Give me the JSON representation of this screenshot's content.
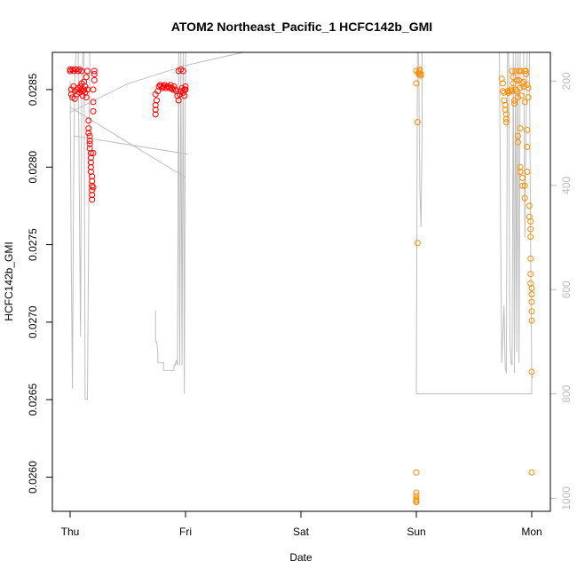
{
  "chart_data": {
    "type": "scatter",
    "title": "ATOM2 Northeast_Pacific_1 HCFC142b_GMI",
    "xlabel": "Date",
    "ylabel": "HCFC142b_GMI",
    "x_ticks": [
      "Thu",
      "Fri",
      "Sat",
      "Sun",
      "Mon"
    ],
    "xlim_days": [
      -0.1,
      4.15
    ],
    "ylim": [
      0.02578,
      0.02874
    ],
    "y_ticks": [
      "0.0260",
      "0.0265",
      "0.0270",
      "0.0275",
      "0.0280",
      "0.0285"
    ],
    "y2_ticks": [
      "200",
      "400",
      "600",
      "800",
      "1000"
    ],
    "y2lim": [
      1025,
      145
    ],
    "colors": {
      "series1": "#ff0000",
      "series2": "#ff8c00",
      "altitude": "#bebebe"
    },
    "series": [
      {
        "color": "red",
        "points": [
          [
            0.0,
            0.02863
          ],
          [
            0.0,
            0.02862
          ],
          [
            0.01,
            0.0285
          ],
          [
            0.01,
            0.02847
          ],
          [
            0.02,
            0.02845
          ],
          [
            0.02,
            0.02863
          ],
          [
            0.03,
            0.02862
          ],
          [
            0.03,
            0.02852
          ],
          [
            0.04,
            0.02849
          ],
          [
            0.04,
            0.02844
          ],
          [
            0.05,
            0.02863
          ],
          [
            0.05,
            0.02863
          ],
          [
            0.06,
            0.0285
          ],
          [
            0.06,
            0.02847
          ],
          [
            0.07,
            0.02862
          ],
          [
            0.07,
            0.02851
          ],
          [
            0.08,
            0.02848
          ],
          [
            0.08,
            0.02863
          ],
          [
            0.09,
            0.02852
          ],
          [
            0.09,
            0.0285
          ],
          [
            0.1,
            0.02862
          ],
          [
            0.1,
            0.02854
          ],
          [
            0.11,
            0.02849
          ],
          [
            0.11,
            0.02846
          ],
          [
            0.12,
            0.02855
          ],
          [
            0.12,
            0.0285
          ],
          [
            0.13,
            0.02852
          ],
          [
            0.13,
            0.02848
          ],
          [
            0.14,
            0.02858
          ],
          [
            0.14,
            0.02845
          ],
          [
            0.15,
            0.02862
          ],
          [
            0.15,
            0.0285
          ],
          [
            0.16,
            0.0283
          ],
          [
            0.16,
            0.02825
          ],
          [
            0.16,
            0.02822
          ],
          [
            0.17,
            0.0282
          ],
          [
            0.17,
            0.02817
          ],
          [
            0.17,
            0.02815
          ],
          [
            0.17,
            0.02812
          ],
          [
            0.18,
            0.02809
          ],
          [
            0.18,
            0.02806
          ],
          [
            0.18,
            0.02803
          ],
          [
            0.18,
            0.028
          ],
          [
            0.18,
            0.02797
          ],
          [
            0.19,
            0.02794
          ],
          [
            0.19,
            0.02791
          ],
          [
            0.19,
            0.02788
          ],
          [
            0.19,
            0.02785
          ],
          [
            0.19,
            0.02782
          ],
          [
            0.19,
            0.02779
          ],
          [
            0.2,
            0.02787
          ],
          [
            0.2,
            0.02809
          ],
          [
            0.2,
            0.02836
          ],
          [
            0.2,
            0.02842
          ],
          [
            0.2,
            0.0285
          ],
          [
            0.21,
            0.02856
          ],
          [
            0.21,
            0.0286
          ],
          [
            0.21,
            0.02862
          ],
          [
            0.74,
            0.02847
          ],
          [
            0.74,
            0.0284
          ],
          [
            0.74,
            0.02837
          ],
          [
            0.74,
            0.02834
          ],
          [
            0.75,
            0.02843
          ],
          [
            0.76,
            0.02849
          ],
          [
            0.77,
            0.02852
          ],
          [
            0.78,
            0.02853
          ],
          [
            0.79,
            0.02852
          ],
          [
            0.8,
            0.02851
          ],
          [
            0.81,
            0.02852
          ],
          [
            0.82,
            0.02853
          ],
          [
            0.83,
            0.02851
          ],
          [
            0.84,
            0.02852
          ],
          [
            0.85,
            0.02852
          ],
          [
            0.86,
            0.02851
          ],
          [
            0.87,
            0.02853
          ],
          [
            0.88,
            0.02851
          ],
          [
            0.89,
            0.0285
          ],
          [
            0.9,
            0.02852
          ],
          [
            0.91,
            0.0285
          ],
          [
            0.92,
            0.02849
          ],
          [
            0.93,
            0.02846
          ],
          [
            0.94,
            0.02843
          ],
          [
            0.94,
            0.02862
          ],
          [
            0.95,
            0.02847
          ],
          [
            0.96,
            0.02863
          ],
          [
            0.96,
            0.02849
          ],
          [
            0.97,
            0.02851
          ],
          [
            0.98,
            0.02862
          ],
          [
            0.98,
            0.02848
          ],
          [
            0.99,
            0.0285
          ],
          [
            0.99,
            0.02846
          ],
          [
            1.0,
            0.0285
          ],
          [
            1.0,
            0.02852
          ]
        ]
      },
      {
        "color": "darkorange",
        "points": [
          [
            3.0,
            0.02862
          ],
          [
            3.0,
            0.02854
          ],
          [
            3.01,
            0.02829
          ],
          [
            3.01,
            0.02751
          ],
          [
            3.02,
            0.0286
          ],
          [
            3.02,
            0.02861
          ],
          [
            3.03,
            0.02863
          ],
          [
            3.03,
            0.02862
          ],
          [
            3.04,
            0.0286
          ],
          [
            3.04,
            0.02859
          ],
          [
            3.0,
            0.02603
          ],
          [
            3.0,
            0.0259
          ],
          [
            3.0,
            0.02588
          ],
          [
            3.0,
            0.02586
          ],
          [
            3.0,
            0.02585
          ],
          [
            3.0,
            0.02584
          ],
          [
            3.0,
            0.02584
          ],
          [
            3.74,
            0.02857
          ],
          [
            3.75,
            0.02854
          ],
          [
            3.75,
            0.02849
          ],
          [
            3.76,
            0.02848
          ],
          [
            3.76,
            0.02843
          ],
          [
            3.77,
            0.0284
          ],
          [
            3.77,
            0.02837
          ],
          [
            3.78,
            0.02834
          ],
          [
            3.78,
            0.02831
          ],
          [
            3.78,
            0.02829
          ],
          [
            3.79,
            0.02849
          ],
          [
            3.8,
            0.02848
          ],
          [
            3.81,
            0.02849
          ],
          [
            3.82,
            0.0285
          ],
          [
            3.83,
            0.02849
          ],
          [
            3.83,
            0.02862
          ],
          [
            3.84,
            0.02858
          ],
          [
            3.84,
            0.02854
          ],
          [
            3.85,
            0.02843
          ],
          [
            3.85,
            0.02841
          ],
          [
            3.86,
            0.0285
          ],
          [
            3.86,
            0.02862
          ],
          [
            3.87,
            0.02856
          ],
          [
            3.87,
            0.02849
          ],
          [
            3.88,
            0.02845
          ],
          [
            3.88,
            0.0282
          ],
          [
            3.88,
            0.02816
          ],
          [
            3.89,
            0.02862
          ],
          [
            3.89,
            0.02856
          ],
          [
            3.9,
            0.02851
          ],
          [
            3.9,
            0.02825
          ],
          [
            3.9,
            0.028
          ],
          [
            3.9,
            0.02797
          ],
          [
            3.91,
            0.02862
          ],
          [
            3.91,
            0.02846
          ],
          [
            3.92,
            0.02854
          ],
          [
            3.92,
            0.02793
          ],
          [
            3.92,
            0.02788
          ],
          [
            3.93,
            0.02855
          ],
          [
            3.93,
            0.02852
          ],
          [
            3.94,
            0.02862
          ],
          [
            3.94,
            0.02842
          ],
          [
            3.94,
            0.02788
          ],
          [
            3.94,
            0.0278
          ],
          [
            3.95,
            0.0286
          ],
          [
            3.95,
            0.02862
          ],
          [
            3.96,
            0.02853
          ],
          [
            3.96,
            0.02824
          ],
          [
            3.96,
            0.02813
          ],
          [
            3.96,
            0.02797
          ],
          [
            3.97,
            0.02845
          ],
          [
            3.97,
            0.02851
          ],
          [
            3.98,
            0.02775
          ],
          [
            3.98,
            0.02768
          ],
          [
            3.99,
            0.02765
          ],
          [
            3.99,
            0.0276
          ],
          [
            3.99,
            0.02755
          ],
          [
            3.99,
            0.02741
          ],
          [
            3.99,
            0.02731
          ],
          [
            3.99,
            0.02725
          ],
          [
            4.0,
            0.02722
          ],
          [
            4.0,
            0.02718
          ],
          [
            4.0,
            0.02713
          ],
          [
            4.0,
            0.02707
          ],
          [
            4.0,
            0.02701
          ],
          [
            4.0,
            0.02668
          ],
          [
            4.0,
            0.02603
          ]
        ]
      }
    ],
    "altitude_segments": [
      [
        [
          0.0,
          200
        ],
        [
          0.01,
          550
        ],
        [
          0.02,
          790
        ],
        [
          0.03,
          400
        ],
        [
          0.04,
          200
        ],
        [
          0.05,
          145
        ],
        [
          0.07,
          145
        ],
        [
          0.08,
          420
        ],
        [
          0.09,
          690
        ],
        [
          0.1,
          230
        ],
        [
          0.11,
          145
        ],
        [
          0.12,
          145
        ],
        [
          0.13,
          810
        ],
        [
          0.14,
          810
        ],
        [
          0.15,
          810
        ],
        [
          0.16,
          510
        ],
        [
          0.17,
          145
        ],
        [
          0.18,
          145
        ],
        [
          0.19,
          145
        ],
        [
          0.2,
          145
        ],
        [
          0.21,
          145
        ]
      ],
      [
        [
          0.0,
          250
        ],
        [
          1.0,
          385
        ]
      ],
      [
        [
          0.03,
          305
        ],
        [
          1.02,
          340
        ]
      ],
      [
        [
          0.74,
          640
        ],
        [
          0.74,
          700
        ],
        [
          0.75,
          700
        ],
        [
          0.76,
          720
        ],
        [
          0.76,
          740
        ],
        [
          0.81,
          740
        ],
        [
          0.81,
          755
        ],
        [
          0.9,
          755
        ],
        [
          0.9,
          745
        ],
        [
          0.91,
          745
        ],
        [
          0.92,
          735
        ],
        [
          0.93,
          745
        ],
        [
          0.94,
          145
        ],
        [
          0.95,
          745
        ],
        [
          0.96,
          145
        ],
        [
          0.97,
          745
        ],
        [
          0.98,
          145
        ],
        [
          0.99,
          800
        ],
        [
          1.0,
          145
        ],
        [
          1.01,
          145
        ]
      ],
      [
        [
          0.0,
          260
        ],
        [
          0.5,
          205
        ],
        [
          1.0,
          170
        ],
        [
          1.5,
          145
        ]
      ],
      [
        [
          3.0,
          800
        ],
        [
          3.01,
          145
        ],
        [
          3.02,
          145
        ],
        [
          3.03,
          400
        ],
        [
          3.04,
          480
        ],
        [
          3.05,
          300
        ],
        [
          3.05,
          145
        ]
      ],
      [
        [
          3.0,
          800
        ],
        [
          4.0,
          800
        ],
        [
          4.0,
          760
        ]
      ],
      [
        [
          3.72,
          145
        ],
        [
          3.73,
          470
        ],
        [
          3.74,
          740
        ],
        [
          3.76,
          630
        ],
        [
          3.77,
          750
        ],
        [
          3.78,
          760
        ],
        [
          3.79,
          145
        ],
        [
          3.8,
          145
        ],
        [
          3.81,
          690
        ],
        [
          3.82,
          740
        ],
        [
          3.83,
          745
        ],
        [
          3.84,
          145
        ],
        [
          3.85,
          760
        ],
        [
          3.86,
          145
        ],
        [
          3.87,
          720
        ],
        [
          3.88,
          145
        ],
        [
          3.89,
          740
        ],
        [
          3.9,
          145
        ],
        [
          3.91,
          145
        ],
        [
          3.92,
          145
        ],
        [
          3.93,
          145
        ],
        [
          3.94,
          500
        ],
        [
          3.95,
          300
        ],
        [
          3.96,
          145
        ],
        [
          3.97,
          145
        ],
        [
          3.98,
          145
        ],
        [
          3.99,
          500
        ],
        [
          4.0,
          760
        ],
        [
          4.01,
          770
        ]
      ]
    ]
  }
}
